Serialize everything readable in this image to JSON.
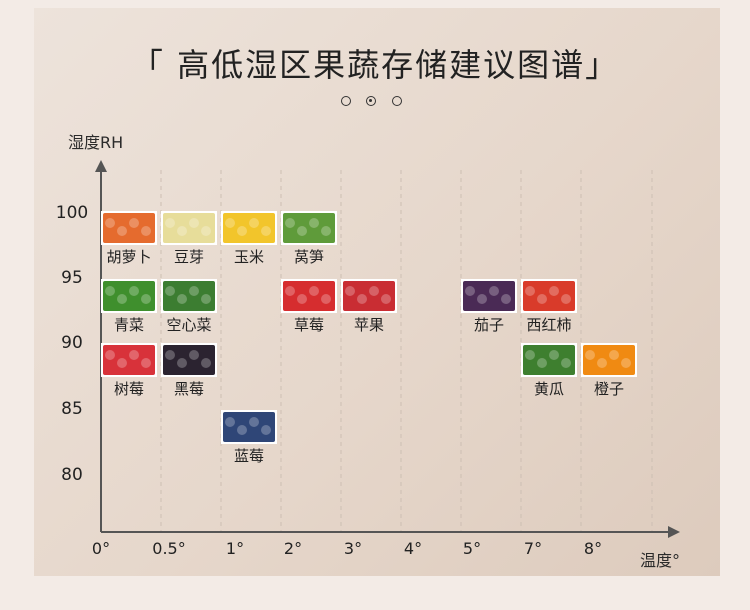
{
  "title": "「 高低湿区果蔬存储建议图谱」",
  "pager": {
    "count": 3,
    "active": 1
  },
  "chart_data": {
    "type": "scatter",
    "title": "「 高低湿区果蔬存储建议图谱」",
    "xlabel": "温度°",
    "ylabel": "湿度RH",
    "x_categories": [
      "0°",
      "0.5°",
      "1°",
      "2°",
      "3°",
      "4°",
      "5°",
      "7°",
      "8°"
    ],
    "y_ticks": [
      100,
      95,
      90,
      85,
      80
    ],
    "grid": "dashed-vertical",
    "points": [
      {
        "name": "胡萝卜",
        "x": "0°",
        "y": 100,
        "color": "#e56b2e"
      },
      {
        "name": "豆芽",
        "x": "0.5°",
        "y": 100,
        "color": "#e7dd9a"
      },
      {
        "name": "玉米",
        "x": "1°",
        "y": 100,
        "color": "#f2c52b"
      },
      {
        "name": "莴笋",
        "x": "2°",
        "y": 100,
        "color": "#5f9b3a"
      },
      {
        "name": "青菜",
        "x": "0°",
        "y": 95,
        "color": "#3f8f2d"
      },
      {
        "name": "空心菜",
        "x": "0.5°",
        "y": 95,
        "color": "#3c7d31"
      },
      {
        "name": "草莓",
        "x": "2°",
        "y": 95,
        "color": "#d62d2f"
      },
      {
        "name": "苹果",
        "x": "3°",
        "y": 95,
        "color": "#c92d33"
      },
      {
        "name": "茄子",
        "x": "5°",
        "y": 95,
        "color": "#4a2a55"
      },
      {
        "name": "西红柿",
        "x": "7°",
        "y": 95,
        "color": "#d93b2a"
      },
      {
        "name": "树莓",
        "x": "0°",
        "y": 90,
        "color": "#d8323a"
      },
      {
        "name": "黑莓",
        "x": "0.5°",
        "y": 90,
        "color": "#2b2330"
      },
      {
        "name": "黄瓜",
        "x": "7°",
        "y": 90,
        "color": "#3e7f2f"
      },
      {
        "name": "橙子",
        "x": "8°",
        "y": 90,
        "color": "#f08a12"
      },
      {
        "name": "蓝莓",
        "x": "1°",
        "y": 85,
        "color": "#2f4677"
      }
    ]
  }
}
